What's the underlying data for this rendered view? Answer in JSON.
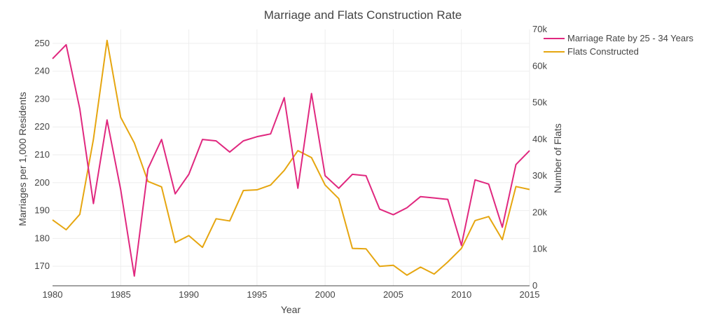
{
  "chart_data": {
    "type": "line",
    "title": "Marriage and Flats Construction Rate",
    "xlabel": "Year",
    "ylabel": "Marriages per 1,000 Residents",
    "y2label": "Number of Flats",
    "xlim": [
      1980,
      2015
    ],
    "ylim": [
      163,
      255
    ],
    "y2lim": [
      0,
      70000
    ],
    "x_ticks": [
      1980,
      1985,
      1990,
      1995,
      2000,
      2005,
      2010,
      2015
    ],
    "x_tick_labels": [
      "1980",
      "1985",
      "1990",
      "1995",
      "2000",
      "2005",
      "2010",
      "2015"
    ],
    "y_ticks": [
      170,
      180,
      190,
      200,
      210,
      220,
      230,
      240,
      250
    ],
    "y_tick_labels": [
      "170",
      "180",
      "190",
      "200",
      "210",
      "220",
      "230",
      "240",
      "250"
    ],
    "y2_ticks": [
      0,
      10000,
      20000,
      30000,
      40000,
      50000,
      60000,
      70000
    ],
    "y2_tick_labels": [
      "0",
      "10k",
      "20k",
      "30k",
      "40k",
      "50k",
      "60k",
      "70k"
    ],
    "grid": true,
    "legend_position": "top-right",
    "x": [
      1980,
      1981,
      1982,
      1983,
      1984,
      1985,
      1986,
      1987,
      1988,
      1989,
      1990,
      1991,
      1992,
      1993,
      1994,
      1995,
      1996,
      1997,
      1998,
      1999,
      2000,
      2001,
      2002,
      2003,
      2004,
      2005,
      2006,
      2007,
      2008,
      2009,
      2010,
      2011,
      2012,
      2013,
      2014,
      2015
    ],
    "series": [
      {
        "name": "Marriage Rate by 25 - 34 Years",
        "axis": "left",
        "color": "#e0287f",
        "values": [
          244.5,
          249.5,
          226.5,
          192.5,
          222.5,
          197.5,
          166.5,
          205.0,
          215.5,
          196.0,
          203.0,
          215.5,
          215.0,
          211.0,
          215.0,
          216.5,
          217.5,
          230.5,
          198.0,
          232.0,
          202.5,
          198.0,
          203.0,
          202.5,
          190.5,
          188.5,
          191.0,
          195.0,
          194.5,
          194.0,
          177.5,
          201.0,
          199.5,
          184.0,
          206.5,
          211.5
        ]
      },
      {
        "name": "Flats Constructed",
        "axis": "right",
        "color": "#e6a610",
        "values": [
          18000,
          15300,
          19500,
          40000,
          67000,
          46000,
          39000,
          28500,
          27000,
          11800,
          13700,
          10500,
          18300,
          17700,
          26000,
          26200,
          27500,
          31500,
          36900,
          35000,
          27500,
          23800,
          10200,
          10100,
          5300,
          5600,
          2900,
          5100,
          3200,
          6500,
          10200,
          17800,
          18900,
          12600,
          27100,
          26300
        ]
      }
    ]
  }
}
